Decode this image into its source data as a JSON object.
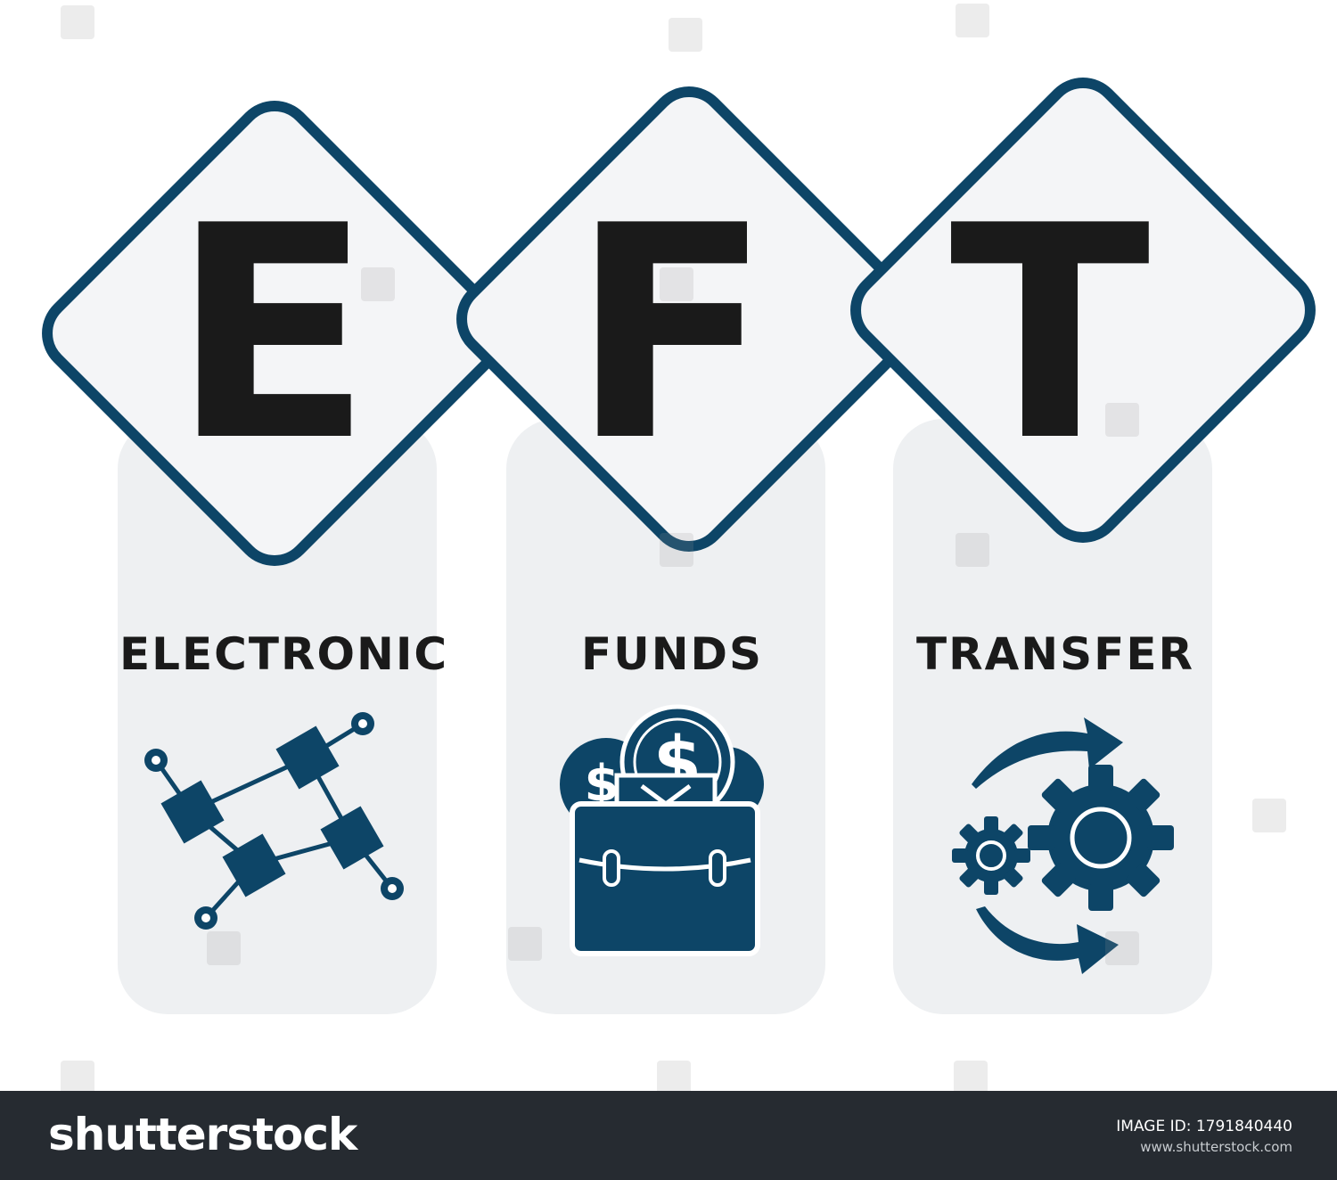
{
  "acronym": {
    "letters": [
      "E",
      "F",
      "T"
    ],
    "words": [
      "ELECTRONIC",
      "FUNDS",
      "TRANSFER"
    ]
  },
  "icons": [
    "circuit-network-icon",
    "briefcase-money-icon",
    "gears-cycle-icon"
  ],
  "colors": {
    "accent": "#0d4567",
    "card": "#eef0f2",
    "diamond_fill": "#f4f5f7",
    "text": "#1a1a1a",
    "footer": "#262b31"
  },
  "footer": {
    "logo": "shutterstock",
    "image_id_label": "IMAGE ID: 1791840440",
    "url": "www.shutterstock.com"
  }
}
